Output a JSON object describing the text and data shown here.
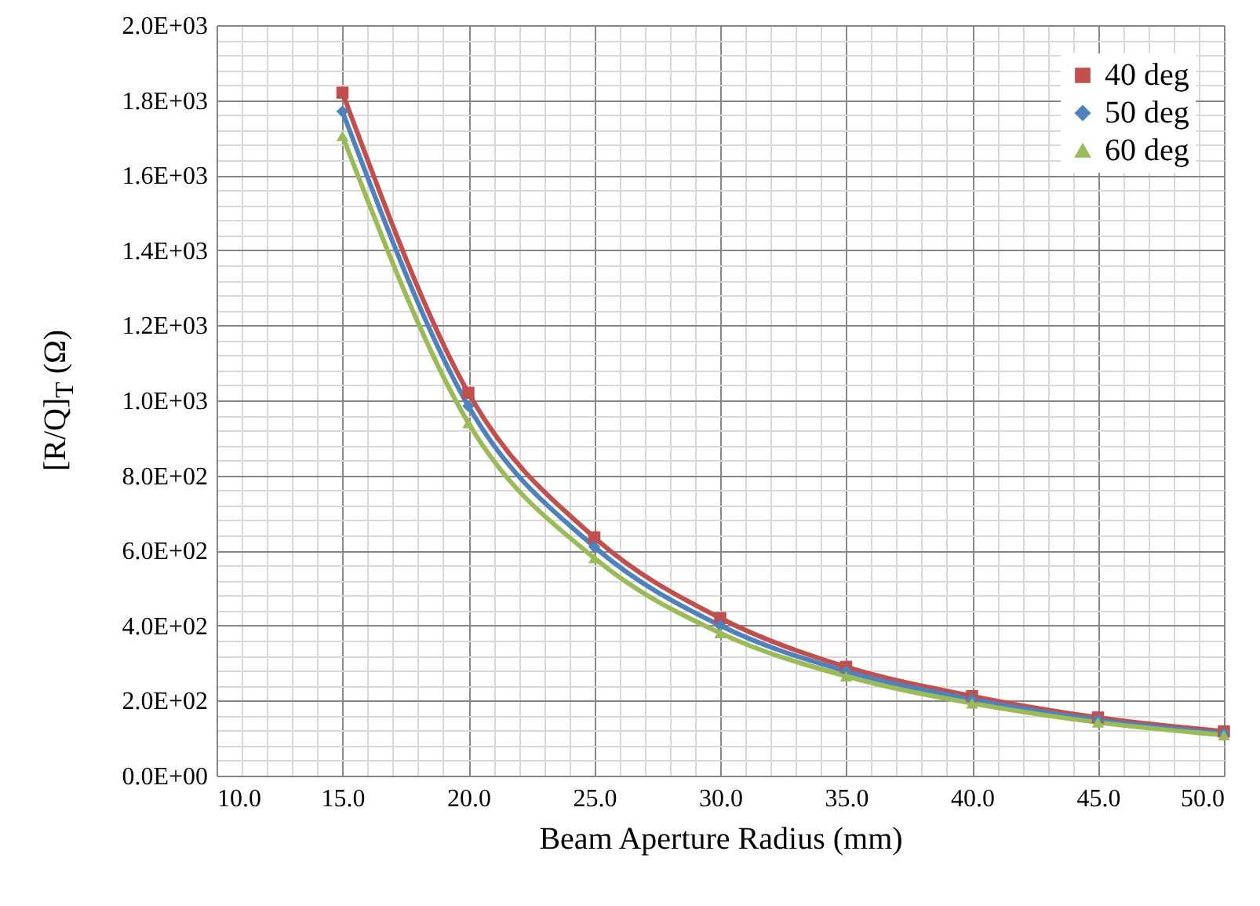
{
  "chart_data": {
    "type": "line",
    "xlabel": "Beam Aperture Radius (mm)",
    "ylabel": "[R/Q]$_{T}$ (Ω)",
    "x": [
      15,
      20,
      25,
      30,
      35,
      40,
      45,
      50
    ],
    "series": [
      {
        "name": "40 deg",
        "color": "#c0504d",
        "marker": "square",
        "values": [
          1820,
          1020,
          635,
          420,
          290,
          212,
          155,
          118
        ]
      },
      {
        "name": "50 deg",
        "color": "#4f81bd",
        "marker": "diamond",
        "values": [
          1770,
          985,
          610,
          400,
          278,
          203,
          148,
          113
        ]
      },
      {
        "name": "60 deg",
        "color": "#9bbb59",
        "marker": "triangle",
        "values": [
          1705,
          940,
          580,
          380,
          265,
          193,
          142,
          108
        ]
      }
    ],
    "xlim": [
      10,
      50
    ],
    "xticks": [
      {
        "value": 10,
        "label": "10.0"
      },
      {
        "value": 11,
        "label": null
      },
      {
        "value": 12,
        "label": null
      },
      {
        "value": 13,
        "label": null
      },
      {
        "value": 14,
        "label": null
      },
      {
        "value": 15,
        "label": "15.0"
      },
      {
        "value": 16,
        "label": null
      },
      {
        "value": 17,
        "label": null
      },
      {
        "value": 18,
        "label": null
      },
      {
        "value": 19,
        "label": null
      },
      {
        "value": 20,
        "label": "20.0"
      },
      {
        "value": 21,
        "label": null
      },
      {
        "value": 22,
        "label": null
      },
      {
        "value": 23,
        "label": null
      },
      {
        "value": 24,
        "label": null
      },
      {
        "value": 25,
        "label": "25.0"
      },
      {
        "value": 26,
        "label": null
      },
      {
        "value": 27,
        "label": null
      },
      {
        "value": 28,
        "label": null
      },
      {
        "value": 29,
        "label": null
      },
      {
        "value": 30,
        "label": "30.0"
      },
      {
        "value": 31,
        "label": null
      },
      {
        "value": 32,
        "label": null
      },
      {
        "value": 33,
        "label": null
      },
      {
        "value": 34,
        "label": null
      },
      {
        "value": 35,
        "label": "35.0"
      },
      {
        "value": 36,
        "label": null
      },
      {
        "value": 37,
        "label": null
      },
      {
        "value": 38,
        "label": null
      },
      {
        "value": 39,
        "label": null
      },
      {
        "value": 40,
        "label": "40.0"
      },
      {
        "value": 41,
        "label": null
      },
      {
        "value": 42,
        "label": null
      },
      {
        "value": 43,
        "label": null
      },
      {
        "value": 44,
        "label": null
      },
      {
        "value": 45,
        "label": "45.0"
      },
      {
        "value": 46,
        "label": null
      },
      {
        "value": 47,
        "label": null
      },
      {
        "value": 48,
        "label": null
      },
      {
        "value": 49,
        "label": null
      },
      {
        "value": 50,
        "label": "50.0"
      }
    ],
    "ylim": [
      0,
      2000
    ],
    "yticks": [
      {
        "value": 0,
        "label": "0.0E+00"
      },
      {
        "value": 40,
        "label": null
      },
      {
        "value": 80,
        "label": null
      },
      {
        "value": 120,
        "label": null
      },
      {
        "value": 160,
        "label": null
      },
      {
        "value": 200,
        "label": "2.0E+02"
      },
      {
        "value": 240,
        "label": null
      },
      {
        "value": 280,
        "label": null
      },
      {
        "value": 320,
        "label": null
      },
      {
        "value": 360,
        "label": null
      },
      {
        "value": 400,
        "label": "4.0E+02"
      },
      {
        "value": 440,
        "label": null
      },
      {
        "value": 480,
        "label": null
      },
      {
        "value": 520,
        "label": null
      },
      {
        "value": 560,
        "label": null
      },
      {
        "value": 600,
        "label": "6.0E+02"
      },
      {
        "value": 640,
        "label": null
      },
      {
        "value": 680,
        "label": null
      },
      {
        "value": 720,
        "label": null
      },
      {
        "value": 760,
        "label": null
      },
      {
        "value": 800,
        "label": "8.0E+02"
      },
      {
        "value": 840,
        "label": null
      },
      {
        "value": 880,
        "label": null
      },
      {
        "value": 920,
        "label": null
      },
      {
        "value": 960,
        "label": null
      },
      {
        "value": 1000,
        "label": "1.0E+03"
      },
      {
        "value": 1040,
        "label": null
      },
      {
        "value": 1080,
        "label": null
      },
      {
        "value": 1120,
        "label": null
      },
      {
        "value": 1160,
        "label": null
      },
      {
        "value": 1200,
        "label": "1.2E+03"
      },
      {
        "value": 1240,
        "label": null
      },
      {
        "value": 1280,
        "label": null
      },
      {
        "value": 1320,
        "label": null
      },
      {
        "value": 1360,
        "label": null
      },
      {
        "value": 1400,
        "label": "1.4E+03"
      },
      {
        "value": 1440,
        "label": null
      },
      {
        "value": 1480,
        "label": null
      },
      {
        "value": 1520,
        "label": null
      },
      {
        "value": 1560,
        "label": null
      },
      {
        "value": 1600,
        "label": "1.6E+03"
      },
      {
        "value": 1640,
        "label": null
      },
      {
        "value": 1680,
        "label": null
      },
      {
        "value": 1720,
        "label": null
      },
      {
        "value": 1760,
        "label": null
      },
      {
        "value": 1800,
        "label": "1.8E+03"
      },
      {
        "value": 1840,
        "label": null
      },
      {
        "value": 1880,
        "label": null
      },
      {
        "value": 1920,
        "label": null
      },
      {
        "value": 1960,
        "label": null
      },
      {
        "value": 2000,
        "label": "2.0E+03"
      }
    ],
    "grid": true,
    "legend": "top right",
    "line_style": "solid"
  }
}
